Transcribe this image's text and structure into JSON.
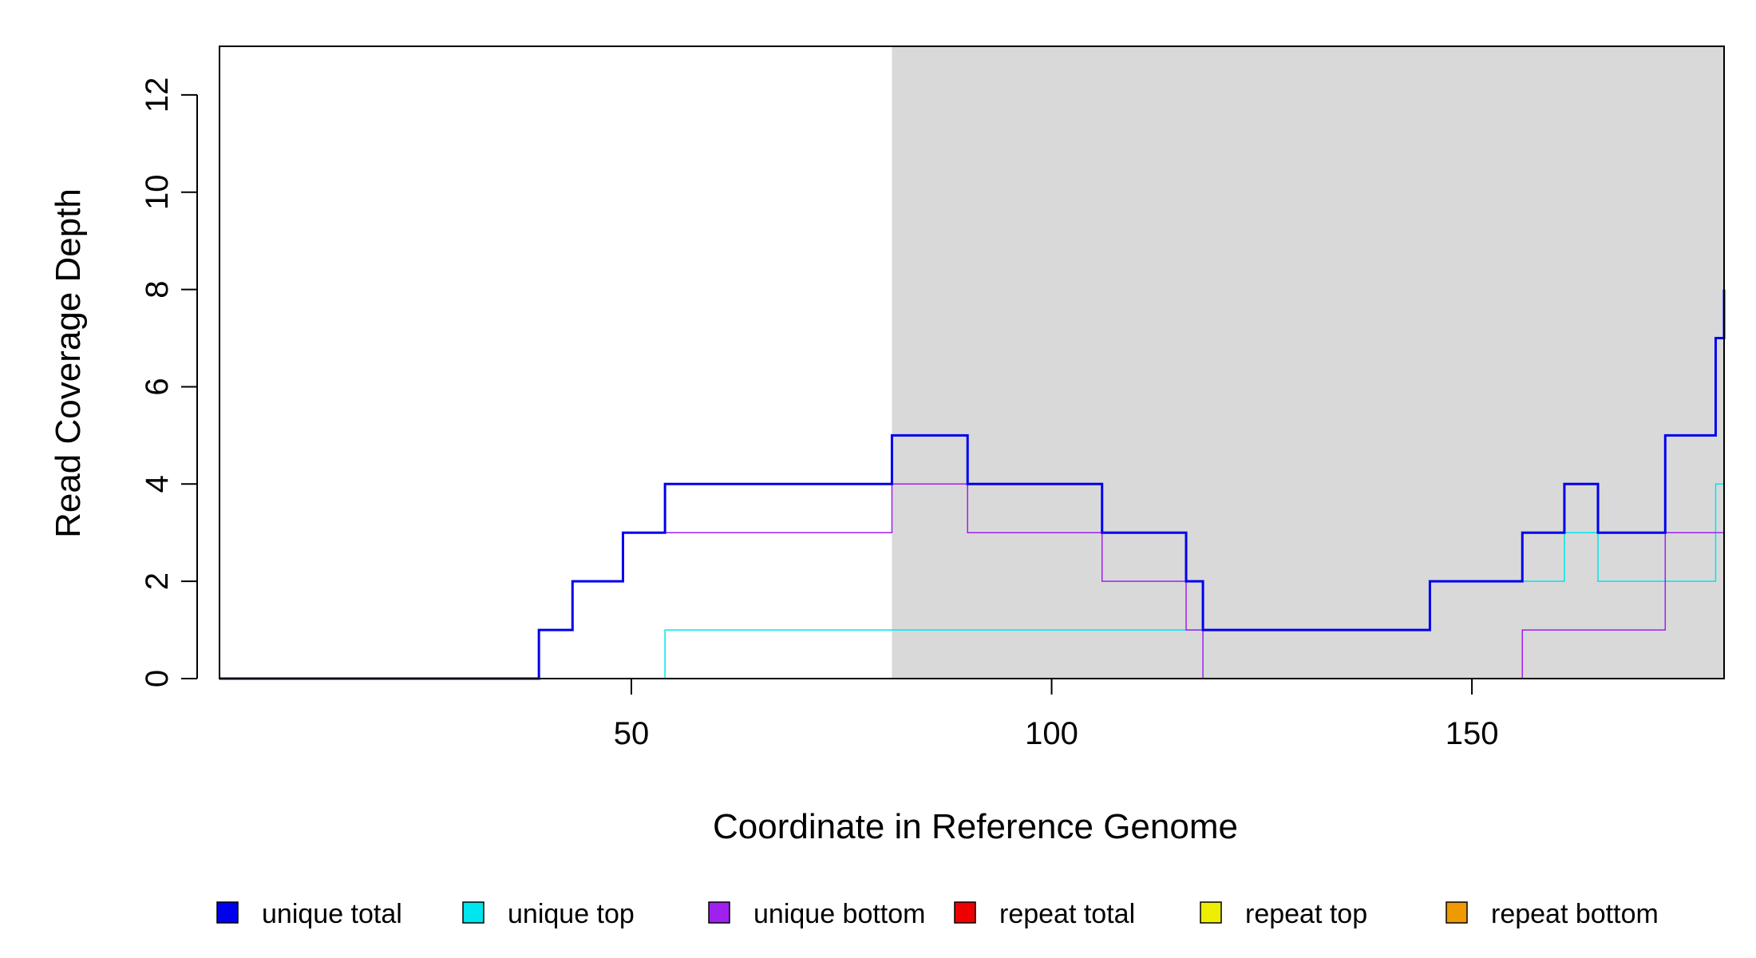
{
  "chart_data": {
    "type": "line",
    "step": true,
    "title": "",
    "xlabel": "Coordinate in Reference Genome",
    "ylabel": "Read Coverage Depth",
    "xlim": [
      1,
      180
    ],
    "ylim": [
      0,
      13
    ],
    "x_ticks": [
      50,
      100,
      150
    ],
    "y_ticks": [
      0,
      2,
      4,
      6,
      8,
      10,
      12
    ],
    "x_tick_labels": [
      "50",
      "100",
      "150"
    ],
    "y_tick_labels": [
      "0",
      "2",
      "4",
      "6",
      "8",
      "10",
      "12"
    ],
    "grid": false,
    "shaded_region": {
      "x_start": 81,
      "x_end": 180,
      "color": "#d9d9d9"
    },
    "legend_position": "bottom",
    "series": [
      {
        "name": "unique total",
        "color": "#0000ee",
        "line_width": 3,
        "points": [
          [
            1,
            0
          ],
          [
            39,
            1
          ],
          [
            43,
            2
          ],
          [
            49,
            3
          ],
          [
            54,
            4
          ],
          [
            81,
            5
          ],
          [
            90,
            4
          ],
          [
            106,
            3
          ],
          [
            116,
            2
          ],
          [
            118,
            1
          ],
          [
            145,
            2
          ],
          [
            156,
            3
          ],
          [
            161,
            4
          ],
          [
            165,
            3
          ],
          [
            173,
            5
          ],
          [
            179,
            7
          ],
          [
            180,
            8
          ]
        ]
      },
      {
        "name": "unique top",
        "color": "#00e5ee",
        "line_width": 1.5,
        "points": [
          [
            1,
            0
          ],
          [
            54,
            1
          ],
          [
            145,
            2
          ],
          [
            161,
            3
          ],
          [
            165,
            2
          ],
          [
            179,
            4
          ],
          [
            180,
            4
          ]
        ]
      },
      {
        "name": "unique bottom",
        "color": "#a020f0",
        "line_width": 1.5,
        "points": [
          [
            1,
            0
          ],
          [
            39,
            1
          ],
          [
            43,
            2
          ],
          [
            49,
            3
          ],
          [
            81,
            4
          ],
          [
            90,
            3
          ],
          [
            106,
            2
          ],
          [
            116,
            1
          ],
          [
            118,
            0
          ],
          [
            156,
            1
          ],
          [
            173,
            3
          ],
          [
            180,
            3
          ]
        ]
      },
      {
        "name": "repeat total",
        "color": "#ee0000",
        "line_width": 2,
        "points": [
          [
            1,
            0
          ],
          [
            180,
            0
          ]
        ]
      },
      {
        "name": "repeat top",
        "color": "#eeee00",
        "line_width": 2,
        "points": [
          [
            1,
            0
          ],
          [
            180,
            0
          ]
        ]
      },
      {
        "name": "repeat bottom",
        "color": "#ee9a00",
        "line_width": 2,
        "points": [
          [
            1,
            0
          ],
          [
            180,
            0
          ]
        ]
      }
    ]
  }
}
